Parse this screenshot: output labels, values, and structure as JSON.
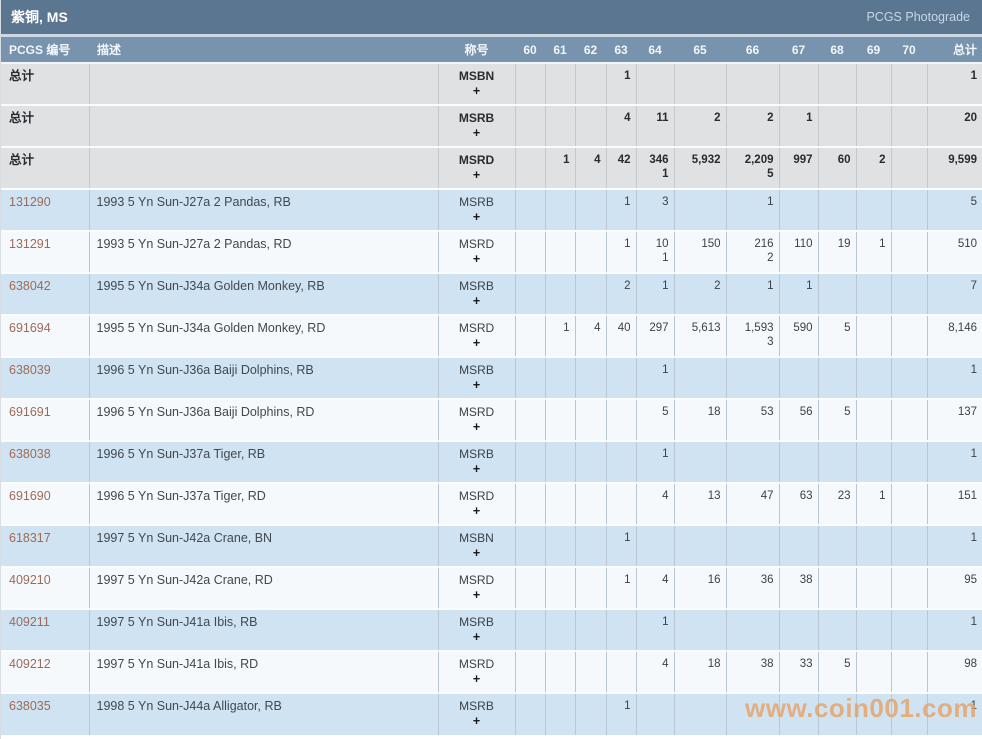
{
  "title_bar": {
    "title": "紫铜, MS",
    "right_link": "PCGS Photograde"
  },
  "colors": {
    "titlebar_bg": "#5b7690",
    "header_bg": "#7793ad",
    "row_gray": "#e0e1e3",
    "row_blue": "#cfe3f2",
    "row_white": "#f6f9fc",
    "link": "#9c6b58",
    "watermark": "#e8a263"
  },
  "table": {
    "headers": {
      "pcgs": "PCGS 编号",
      "desc": "描述",
      "designation": "称号",
      "grades": [
        "60",
        "61",
        "62",
        "63",
        "64",
        "65",
        "66",
        "67",
        "68",
        "69",
        "70"
      ],
      "total": "总计"
    },
    "total_rows": [
      {
        "label": "总计",
        "desc": "",
        "designation": "MSBN",
        "plus": "+",
        "grades": [
          "",
          "",
          "",
          "1",
          "",
          "",
          "",
          "",
          "",
          "",
          ""
        ],
        "total": "1"
      },
      {
        "label": "总计",
        "desc": "",
        "designation": "MSRB",
        "plus": "+",
        "grades": [
          "",
          "",
          "",
          "4",
          "11",
          "2",
          "2",
          "1",
          "",
          "",
          ""
        ],
        "total": "20"
      },
      {
        "label": "总计",
        "desc": "",
        "designation": "MSRD",
        "plus": "+",
        "grades": [
          "",
          "1",
          "4",
          "42",
          [
            "346",
            "1"
          ],
          "5,932",
          [
            "2,209",
            "5"
          ],
          "997",
          "60",
          "2",
          ""
        ],
        "total": "9,599"
      }
    ],
    "rows": [
      {
        "pcgs": "131290",
        "desc": "1993 5 Yn Sun-J27a 2 Pandas, RB",
        "designation": "MSRB",
        "plus": "+",
        "grades": [
          "",
          "",
          "",
          "1",
          "3",
          "",
          "1",
          "",
          "",
          "",
          ""
        ],
        "total": "5"
      },
      {
        "pcgs": "131291",
        "desc": "1993 5 Yn Sun-J27a 2 Pandas, RD",
        "designation": "MSRD",
        "plus": "+",
        "grades": [
          "",
          "",
          "",
          "1",
          [
            "10",
            "1"
          ],
          "150",
          [
            "216",
            "2"
          ],
          "110",
          "19",
          "1",
          ""
        ],
        "total": "510"
      },
      {
        "pcgs": "638042",
        "desc": "1995 5 Yn Sun-J34a Golden Monkey, RB",
        "designation": "MSRB",
        "plus": "+",
        "grades": [
          "",
          "",
          "",
          "2",
          "1",
          "2",
          "1",
          "1",
          "",
          "",
          ""
        ],
        "total": "7"
      },
      {
        "pcgs": "691694",
        "desc": "1995 5 Yn Sun-J34a Golden Monkey, RD",
        "designation": "MSRD",
        "plus": "+",
        "grades": [
          "",
          "1",
          "4",
          "40",
          "297",
          "5,613",
          [
            "1,593",
            "3"
          ],
          "590",
          "5",
          "",
          ""
        ],
        "total": "8,146"
      },
      {
        "pcgs": "638039",
        "desc": "1996 5 Yn Sun-J36a Baiji Dolphins, RB",
        "designation": "MSRB",
        "plus": "+",
        "grades": [
          "",
          "",
          "",
          "",
          "1",
          "",
          "",
          "",
          "",
          "",
          ""
        ],
        "total": "1"
      },
      {
        "pcgs": "691691",
        "desc": "1996 5 Yn Sun-J36a Baiji Dolphins, RD",
        "designation": "MSRD",
        "plus": "+",
        "grades": [
          "",
          "",
          "",
          "",
          "5",
          "18",
          "53",
          "56",
          "5",
          "",
          ""
        ],
        "total": "137"
      },
      {
        "pcgs": "638038",
        "desc": "1996 5 Yn Sun-J37a Tiger, RB",
        "designation": "MSRB",
        "plus": "+",
        "grades": [
          "",
          "",
          "",
          "",
          "1",
          "",
          "",
          "",
          "",
          "",
          ""
        ],
        "total": "1"
      },
      {
        "pcgs": "691690",
        "desc": "1996 5 Yn Sun-J37a Tiger, RD",
        "designation": "MSRD",
        "plus": "+",
        "grades": [
          "",
          "",
          "",
          "",
          "4",
          "13",
          "47",
          "63",
          "23",
          "1",
          ""
        ],
        "total": "151"
      },
      {
        "pcgs": "618317",
        "desc": "1997 5 Yn Sun-J42a Crane, BN",
        "designation": "MSBN",
        "plus": "+",
        "grades": [
          "",
          "",
          "",
          "1",
          "",
          "",
          "",
          "",
          "",
          "",
          ""
        ],
        "total": "1"
      },
      {
        "pcgs": "409210",
        "desc": "1997 5 Yn Sun-J42a Crane, RD",
        "designation": "MSRD",
        "plus": "+",
        "grades": [
          "",
          "",
          "",
          "1",
          "4",
          "16",
          "36",
          "38",
          "",
          "",
          ""
        ],
        "total": "95"
      },
      {
        "pcgs": "409211",
        "desc": "1997 5 Yn Sun-J41a Ibis, RB",
        "designation": "MSRB",
        "plus": "+",
        "grades": [
          "",
          "",
          "",
          "",
          "1",
          "",
          "",
          "",
          "",
          "",
          ""
        ],
        "total": "1"
      },
      {
        "pcgs": "409212",
        "desc": "1997 5 Yn Sun-J41a Ibis, RD",
        "designation": "MSRD",
        "plus": "+",
        "grades": [
          "",
          "",
          "",
          "",
          "4",
          "18",
          "38",
          "33",
          "5",
          "",
          ""
        ],
        "total": "98"
      },
      {
        "pcgs": "638035",
        "desc": "1998 5 Yn Sun-J44a Alligator, RB",
        "designation": "MSRB",
        "plus": "+",
        "grades": [
          "",
          "",
          "",
          "1",
          "",
          "",
          "",
          "",
          "",
          "",
          ""
        ],
        "total": "1"
      }
    ]
  },
  "watermark": "www.coin001.com"
}
